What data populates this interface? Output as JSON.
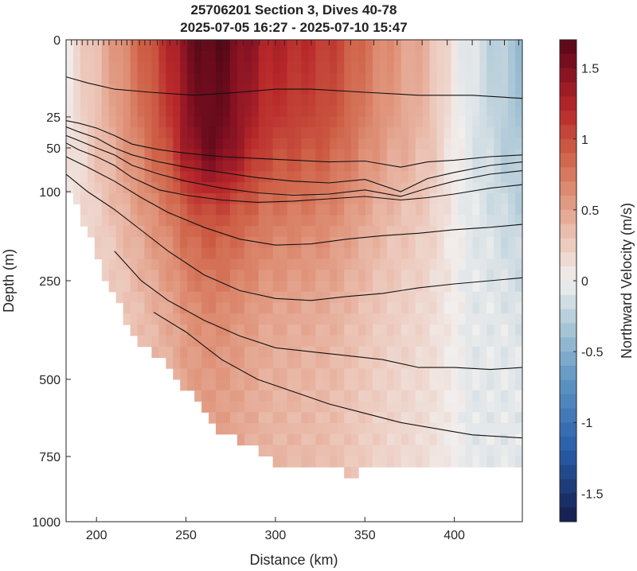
{
  "chart_data": {
    "type": "heatmap",
    "title": "25706201 Section 3, Dives 40-78",
    "subtitle": "2025-07-05 16:27 - 2025-07-10 15:47",
    "xlabel": "Distance (km)",
    "ylabel": "Depth (m)",
    "colorbar_label": "Northward Velocity (m/s)",
    "xlim": [
      183,
      438
    ],
    "ylim": [
      0,
      1000
    ],
    "x_ticks": [
      200,
      250,
      300,
      350,
      400
    ],
    "y_ticks": [
      0,
      25,
      50,
      100,
      250,
      500,
      750,
      1000
    ],
    "colorbar_range": [
      -1.7,
      1.7
    ],
    "colorbar_ticks": [
      1.5,
      1,
      0.5,
      0,
      -0.5,
      -1,
      -1.5
    ],
    "grid": false,
    "colors": {
      "max": "#5a0a16",
      "zero": "#f1efee",
      "min": "#1b1f4e"
    },
    "dive_positions_km": [
      186,
      189,
      192,
      195,
      198,
      201,
      204,
      207,
      211,
      214,
      217,
      220,
      224,
      227,
      230,
      234,
      237,
      241,
      245,
      249,
      253,
      257,
      262,
      266,
      270,
      274,
      278,
      282,
      287,
      291,
      296,
      300,
      305,
      312,
      320,
      330,
      342,
      355,
      368,
      382,
      396,
      410,
      420,
      428,
      436
    ],
    "bottom_depth": {
      "x": [
        183,
        190,
        196,
        202,
        208,
        215,
        222,
        230,
        240,
        250,
        260,
        270,
        280,
        290,
        300,
        310,
        320,
        330,
        338,
        342,
        345,
        350,
        360,
        370,
        380,
        390,
        400,
        410,
        420,
        430,
        438
      ],
      "y": [
        95,
        130,
        170,
        220,
        280,
        330,
        400,
        420,
        470,
        530,
        600,
        680,
        700,
        720,
        790,
        790,
        795,
        800,
        810,
        815,
        815,
        800,
        800,
        790,
        790,
        790,
        785,
        780,
        790,
        795,
        790
      ]
    },
    "core": {
      "x": 265,
      "y": 55,
      "value": 1.7
    },
    "contours": [
      {
        "x": [
          183,
          195,
          210,
          230,
          255,
          280,
          300,
          320,
          350,
          380,
          410,
          438
        ],
        "y": [
          12,
          14,
          16,
          17,
          18,
          17,
          16,
          16,
          17,
          18,
          18,
          19
        ]
      },
      {
        "x": [
          183,
          190,
          200,
          210,
          220,
          235,
          250,
          270,
          290,
          310,
          330,
          350,
          370,
          385,
          400,
          420,
          438
        ],
        "y": [
          28,
          30,
          34,
          40,
          47,
          52,
          56,
          60,
          62,
          64,
          66,
          65,
          72,
          66,
          64,
          60,
          58
        ]
      },
      {
        "x": [
          183,
          190,
          200,
          210,
          220,
          235,
          250,
          270,
          290,
          310,
          330,
          350,
          370,
          385,
          400,
          420,
          438
        ],
        "y": [
          33,
          37,
          42,
          50,
          58,
          66,
          72,
          78,
          84,
          88,
          90,
          86,
          100,
          85,
          78,
          70,
          66
        ]
      },
      {
        "x": [
          183,
          190,
          200,
          210,
          220,
          235,
          250,
          270,
          290,
          310,
          330,
          350,
          370,
          385,
          400,
          420,
          438
        ],
        "y": [
          40,
          44,
          50,
          58,
          70,
          80,
          88,
          96,
          102,
          106,
          104,
          98,
          108,
          96,
          88,
          80,
          76
        ]
      },
      {
        "x": [
          183,
          190,
          200,
          210,
          220,
          235,
          250,
          270,
          290,
          310,
          330,
          350,
          370,
          385,
          400,
          420,
          438
        ],
        "y": [
          46,
          52,
          60,
          70,
          84,
          98,
          106,
          114,
          118,
          116,
          112,
          108,
          114,
          110,
          104,
          96,
          92
        ]
      },
      {
        "x": [
          183,
          195,
          210,
          225,
          240,
          260,
          280,
          300,
          320,
          340,
          360,
          380,
          400,
          420,
          438
        ],
        "y": [
          60,
          72,
          88,
          110,
          135,
          160,
          180,
          190,
          188,
          180,
          174,
          170,
          164,
          160,
          155
        ]
      },
      {
        "x": [
          183,
          195,
          210,
          225,
          240,
          260,
          280,
          300,
          320,
          340,
          360,
          380,
          400,
          420,
          438
        ],
        "y": [
          80,
          100,
          130,
          165,
          200,
          240,
          275,
          295,
          300,
          290,
          282,
          268,
          258,
          250,
          245
        ]
      },
      {
        "x": [
          210,
          225,
          240,
          260,
          280,
          300,
          320,
          340,
          360,
          380,
          400,
          420,
          438
        ],
        "y": [
          200,
          250,
          300,
          350,
          390,
          420,
          430,
          440,
          450,
          470,
          470,
          475,
          470
        ]
      },
      {
        "x": [
          232,
          250,
          270,
          290,
          310,
          330,
          350,
          370,
          390,
          410,
          438
        ],
        "y": [
          330,
          380,
          450,
          500,
          540,
          580,
          610,
          640,
          660,
          680,
          690
        ]
      }
    ]
  }
}
